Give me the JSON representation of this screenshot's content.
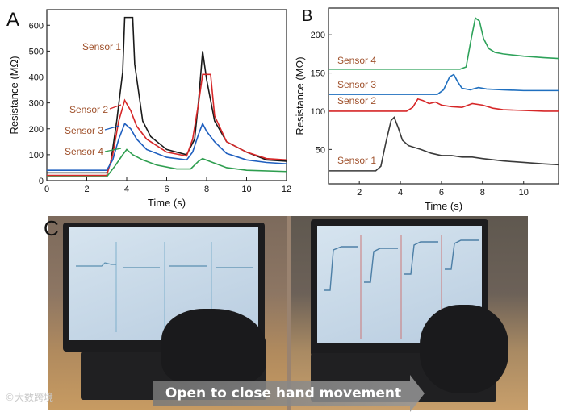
{
  "panel_labels": {
    "a": "A",
    "b": "B",
    "c": "C"
  },
  "chart_data": [
    {
      "type": "line",
      "panel": "A",
      "xlabel": "Time (s)",
      "ylabel": "Resistance (MΩ)",
      "xlim": [
        0,
        12
      ],
      "ylim": [
        0,
        660
      ],
      "xticks": [
        0,
        2,
        4,
        6,
        8,
        10,
        12
      ],
      "yticks": [
        0,
        100,
        200,
        300,
        400,
        500,
        600
      ],
      "grid": false,
      "series": [
        {
          "name": "Sensor 1",
          "color": "#1a1a1a",
          "label_color": "#a0522d",
          "x": [
            0,
            3,
            3.2,
            3.5,
            3.8,
            3.9,
            4.3,
            4.4,
            4.8,
            5.2,
            6,
            7,
            7.4,
            7.6,
            7.8,
            8,
            8.4,
            9,
            10,
            11,
            12
          ],
          "y": [
            30,
            30,
            70,
            230,
            420,
            630,
            630,
            450,
            230,
            170,
            120,
            100,
            160,
            310,
            500,
            390,
            230,
            150,
            110,
            80,
            75
          ]
        },
        {
          "name": "Sensor 2",
          "color": "#d62728",
          "label_color": "#a0522d",
          "x": [
            0,
            3,
            3.3,
            3.6,
            3.9,
            4.2,
            4.5,
            5,
            6,
            7,
            7.3,
            7.6,
            7.8,
            8.2,
            8.4,
            9,
            10,
            11,
            12
          ],
          "y": [
            20,
            20,
            100,
            230,
            310,
            270,
            210,
            160,
            110,
            95,
            160,
            300,
            410,
            410,
            250,
            150,
            110,
            85,
            80
          ]
        },
        {
          "name": "Sensor 3",
          "color": "#1f5fbf",
          "label_color": "#a0522d",
          "x": [
            0,
            3,
            3.3,
            3.6,
            3.9,
            4.2,
            4.5,
            5,
            6,
            7,
            7.3,
            7.6,
            7.8,
            8,
            8.4,
            9,
            10,
            11,
            12
          ],
          "y": [
            40,
            40,
            80,
            160,
            220,
            200,
            160,
            120,
            90,
            80,
            110,
            180,
            220,
            190,
            150,
            105,
            80,
            70,
            65
          ]
        },
        {
          "name": "Sensor 4",
          "color": "#2e9e4f",
          "label_color": "#a0522d",
          "x": [
            0,
            3,
            3.4,
            3.8,
            4,
            4.3,
            4.8,
            5.5,
            6.5,
            7.2,
            7.6,
            7.8,
            8.3,
            9,
            10,
            12
          ],
          "y": [
            15,
            15,
            55,
            100,
            120,
            100,
            80,
            60,
            45,
            45,
            75,
            85,
            70,
            50,
            40,
            35
          ]
        }
      ]
    },
    {
      "type": "line",
      "panel": "B",
      "xlabel": "Time (s)",
      "ylabel": "Resistance (MΩ)",
      "xlim": [
        0.5,
        11.7
      ],
      "ylim": [
        5,
        235
      ],
      "xticks": [
        2,
        4,
        6,
        8,
        10
      ],
      "yticks": [
        50,
        100,
        150,
        200
      ],
      "grid": false,
      "series": [
        {
          "name": "Sensor 1",
          "color": "#3a3a3a",
          "label_color": "#a0522d",
          "x": [
            0.5,
            2.8,
            3.05,
            3.3,
            3.55,
            3.7,
            3.9,
            4.1,
            4.4,
            5,
            5.5,
            6,
            6.5,
            7,
            7.5,
            8,
            9,
            10,
            11,
            11.7
          ],
          "y": [
            22,
            22,
            28,
            60,
            88,
            92,
            78,
            62,
            55,
            50,
            45,
            42,
            42,
            40,
            40,
            38,
            35,
            33,
            31,
            30
          ]
        },
        {
          "name": "Sensor 2",
          "color": "#d62728",
          "label_color": "#a0522d",
          "x": [
            0.5,
            4.3,
            4.6,
            4.85,
            5.1,
            5.4,
            5.7,
            6,
            6.5,
            7,
            7.5,
            8,
            8.5,
            9,
            10,
            11,
            11.7
          ],
          "y": [
            100,
            100,
            105,
            116,
            114,
            110,
            112,
            108,
            106,
            105,
            110,
            108,
            104,
            102,
            101,
            100,
            100
          ]
        },
        {
          "name": "Sensor 3",
          "color": "#1f6fbf",
          "label_color": "#a0522d",
          "x": [
            0.5,
            5.8,
            6.1,
            6.4,
            6.6,
            6.8,
            7,
            7.4,
            7.8,
            8.2,
            9,
            10,
            11.7
          ],
          "y": [
            122,
            122,
            128,
            145,
            148,
            138,
            130,
            128,
            131,
            129,
            128,
            127,
            127
          ]
        },
        {
          "name": "Sensor 4",
          "color": "#2ea25a",
          "label_color": "#a0522d",
          "x": [
            0.5,
            6.9,
            7.2,
            7.45,
            7.65,
            7.85,
            8.05,
            8.3,
            8.6,
            9,
            10,
            11,
            11.7
          ],
          "y": [
            155,
            155,
            158,
            195,
            222,
            218,
            195,
            182,
            177,
            175,
            172,
            170,
            169
          ]
        }
      ]
    }
  ],
  "photo": {
    "caption": "Open to close hand movement"
  },
  "watermark": "©大数跨境"
}
